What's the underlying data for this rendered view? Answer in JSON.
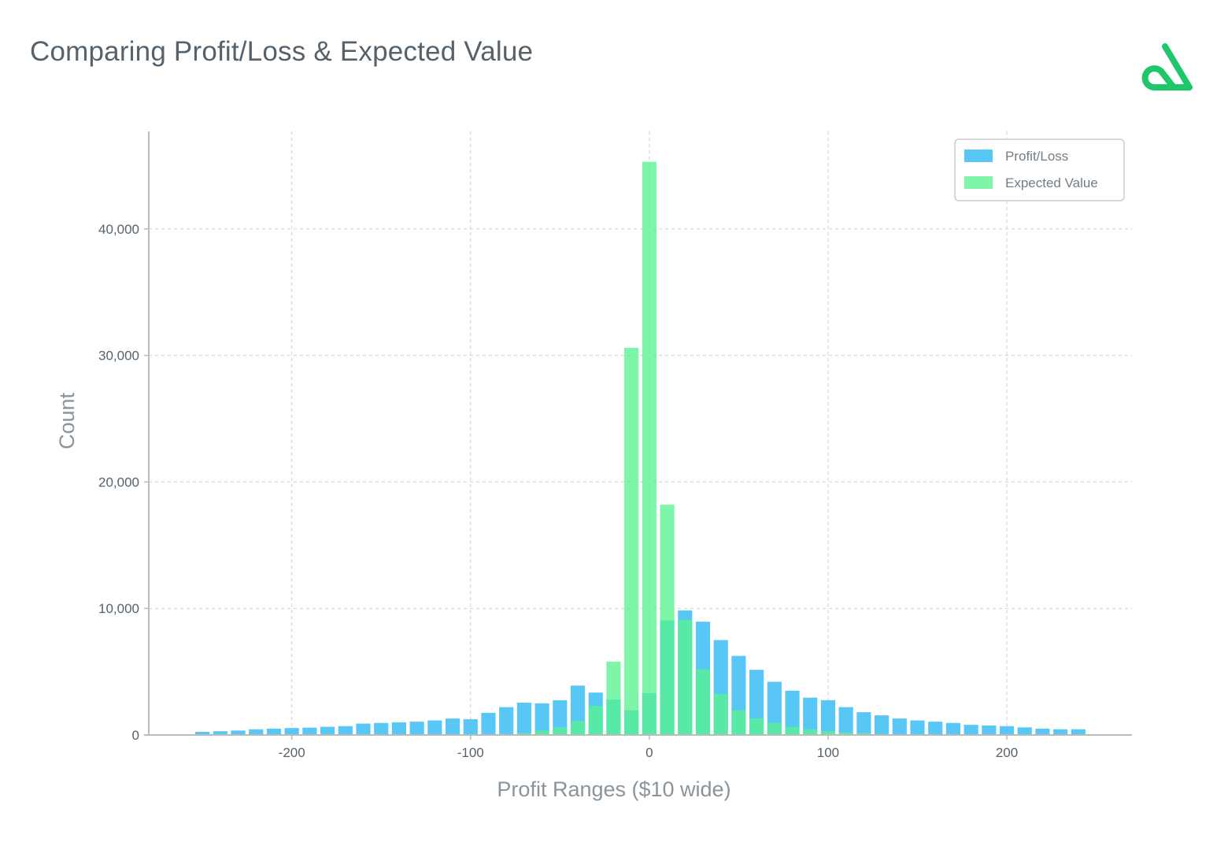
{
  "header": {
    "title": "Comparing Profit/Loss & Expected Value"
  },
  "colors": {
    "profit_loss": "#3bbdf5",
    "expected_value": "#5af28f",
    "axis": "#bbbbbb",
    "grid": "#d0d0d0",
    "brand": "#1ec76a"
  },
  "chart_data": {
    "type": "bar",
    "xlabel": "Profit Ranges ($10 wide)",
    "ylabel": "Count",
    "xlim": [
      -280,
      270
    ],
    "ylim": [
      0,
      47700
    ],
    "x_ticks": [
      {
        "value": -200,
        "label": "-200"
      },
      {
        "value": -100,
        "label": "-100"
      },
      {
        "value": 0,
        "label": "0"
      },
      {
        "value": 100,
        "label": "100"
      },
      {
        "value": 200,
        "label": "200"
      }
    ],
    "y_ticks": [
      {
        "value": 0,
        "label": "0"
      },
      {
        "value": 10000,
        "label": "10,000"
      },
      {
        "value": 20000,
        "label": "20,000"
      },
      {
        "value": 30000,
        "label": "30,000"
      },
      {
        "value": 40000,
        "label": "40,000"
      }
    ],
    "grid": true,
    "legend": {
      "position": "top-right"
    },
    "bin_width": 10,
    "bar_width": 8,
    "series": [
      {
        "name": "Profit/Loss",
        "x": [
          -250,
          -240,
          -230,
          -220,
          -210,
          -200,
          -190,
          -180,
          -170,
          -160,
          -150,
          -140,
          -130,
          -120,
          -110,
          -100,
          -90,
          -80,
          -70,
          -60,
          -50,
          -40,
          -30,
          -20,
          -10,
          0,
          10,
          20,
          30,
          40,
          50,
          60,
          70,
          80,
          90,
          100,
          110,
          120,
          130,
          140,
          150,
          160,
          170,
          180,
          190,
          200,
          210,
          220,
          230,
          240
        ],
        "values": [
          250,
          300,
          350,
          450,
          500,
          550,
          580,
          650,
          700,
          900,
          950,
          1000,
          1050,
          1150,
          1300,
          1250,
          1750,
          2200,
          2550,
          2500,
          2750,
          3900,
          3350,
          2800,
          1950,
          3300,
          9050,
          9850,
          8950,
          7500,
          6250,
          5150,
          4200,
          3500,
          2950,
          2750,
          2200,
          1800,
          1550,
          1300,
          1150,
          1050,
          950,
          800,
          750,
          700,
          600,
          500,
          450,
          450
        ]
      },
      {
        "name": "Expected Value",
        "x": [
          -90,
          -80,
          -70,
          -60,
          -50,
          -40,
          -30,
          -20,
          -10,
          0,
          10,
          20,
          30,
          40,
          50,
          60,
          70,
          80,
          90,
          100,
          110,
          120,
          130,
          140
        ],
        "values": [
          50,
          80,
          150,
          350,
          600,
          1100,
          2300,
          5800,
          30600,
          45300,
          18200,
          9100,
          5200,
          3250,
          1950,
          1300,
          950,
          650,
          450,
          300,
          200,
          150,
          80,
          40
        ]
      }
    ]
  }
}
